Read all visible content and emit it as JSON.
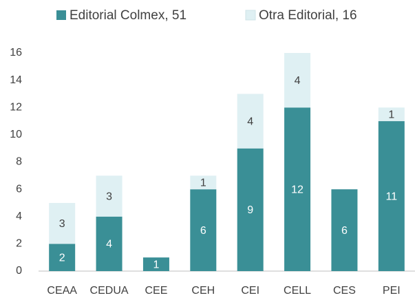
{
  "chart_data": {
    "type": "stacked_bar",
    "categories": [
      "CEAA",
      "CEDUA",
      "CEE",
      "CEH",
      "CEI",
      "CELL",
      "CES",
      "PEI"
    ],
    "series": [
      {
        "name": "Editorial Colmex, 51",
        "color": "#3a8f96",
        "values": [
          2,
          4,
          1,
          6,
          9,
          12,
          6,
          11
        ]
      },
      {
        "name": "Otra Editorial, 16",
        "color": "#dff0f3",
        "values": [
          3,
          3,
          null,
          1,
          4,
          4,
          null,
          1
        ]
      }
    ],
    "ylim": [
      0,
      16
    ],
    "yticks": [
      0,
      2,
      4,
      6,
      8,
      10,
      12,
      14,
      16
    ],
    "grid": false,
    "legend": "top"
  }
}
